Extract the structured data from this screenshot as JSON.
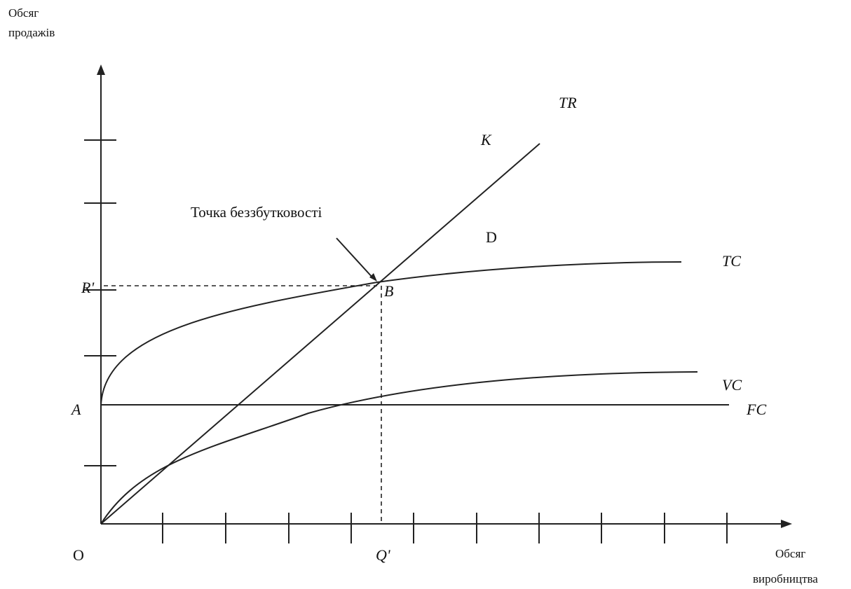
{
  "y_axis": {
    "label_line1": "Обсяг",
    "label_line2": "продажів"
  },
  "x_axis": {
    "label_line1": "Обсяг",
    "label_line2": "виробництва"
  },
  "origin_label": "O",
  "labels": {
    "tr": "TR",
    "k": "K",
    "d": "D",
    "tc": "TC",
    "vc": "VC",
    "fc": "FC",
    "a": "A",
    "r": "R'",
    "b": "B",
    "q": "Q'"
  },
  "annotation": {
    "breakeven": "Точка беззбутковості"
  },
  "colors": {
    "line": "#222222",
    "text": "#111111",
    "background": "#ffffff"
  }
}
